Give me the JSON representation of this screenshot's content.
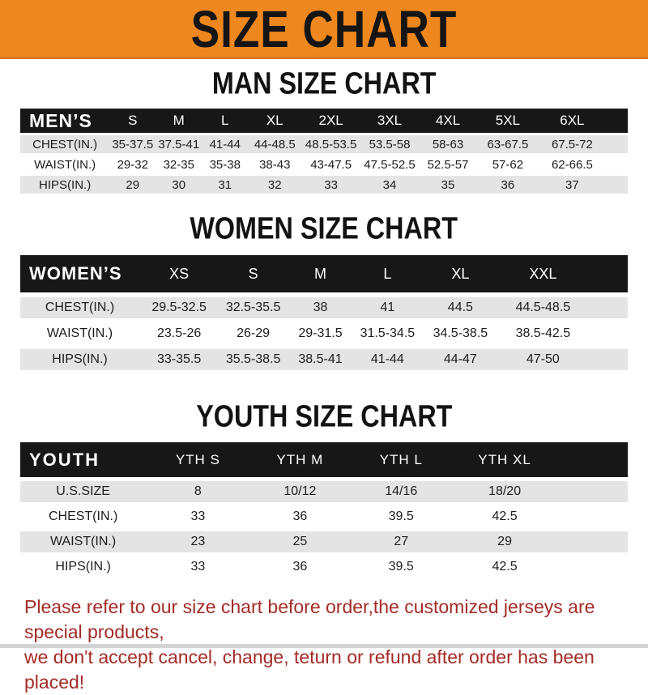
{
  "banner": {
    "title": "SIZE CHART"
  },
  "colors": {
    "banner_bg": "#EE871E",
    "banner_border": "#D9761A",
    "header_bar_bg": "#171717",
    "header_bar_text": "#FFFFFF",
    "alt_row_bg": "#E4E4E4",
    "title_text": "#131313",
    "footer_text": "#A32B26"
  },
  "chart_data": [
    {
      "type": "table",
      "title": "MAN SIZE CHART",
      "corner_label": "MEN’S",
      "columns": [
        "S",
        "M",
        "L",
        "XL",
        "2XL",
        "3XL",
        "4XL",
        "5XL",
        "6XL"
      ],
      "rows": [
        {
          "label": "CHEST(IN.)",
          "values": [
            "35-37.5",
            "37.5-41",
            "41-44",
            "44-48.5",
            "48.5-53.5",
            "53.5-58",
            "58-63",
            "63-67.5",
            "67.5-72"
          ]
        },
        {
          "label": "WAIST(IN.)",
          "values": [
            "29-32",
            "32-35",
            "35-38",
            "38-43",
            "43-47.5",
            "47.5-52.5",
            "52.5-57",
            "57-62",
            "62-66.5"
          ]
        },
        {
          "label": "HIPS(IN.)",
          "values": [
            "29",
            "30",
            "31",
            "32",
            "33",
            "34",
            "35",
            "36",
            "37"
          ]
        }
      ]
    },
    {
      "type": "table",
      "title": "WOMEN SIZE CHART",
      "corner_label": "WOMEN’S",
      "columns": [
        "XS",
        "S",
        "M",
        "L",
        "XL",
        "XXL"
      ],
      "rows": [
        {
          "label": "CHEST(IN.)",
          "values": [
            "29.5-32.5",
            "32.5-35.5",
            "38",
            "41",
            "44.5",
            "44.5-48.5"
          ]
        },
        {
          "label": "WAIST(IN.)",
          "values": [
            "23.5-26",
            "26-29",
            "29-31.5",
            "31.5-34.5",
            "34.5-38.5",
            "38.5-42.5"
          ]
        },
        {
          "label": "HIPS(IN.)",
          "values": [
            "33-35.5",
            "35.5-38.5",
            "38.5-41",
            "41-44",
            "44-47",
            "47-50"
          ]
        }
      ]
    },
    {
      "type": "table",
      "title": "YOUTH SIZE CHART",
      "corner_label": "YOUTH",
      "columns": [
        "YTH S",
        "YTH M",
        "YTH L",
        "YTH XL"
      ],
      "rows": [
        {
          "label": "U.S.SIZE",
          "values": [
            "8",
            "10/12",
            "14/16",
            "18/20"
          ]
        },
        {
          "label": "CHEST(IN.)",
          "values": [
            "33",
            "36",
            "39.5",
            "42.5"
          ]
        },
        {
          "label": "WAIST(IN.)",
          "values": [
            "23",
            "25",
            "27",
            "29"
          ]
        },
        {
          "label": "HIPS(IN.)",
          "values": [
            "33",
            "36",
            "39.5",
            "42.5"
          ]
        }
      ]
    }
  ],
  "footer": {
    "line1": "Please refer to our size chart before order,the customized jerseys are special products,",
    "line2": "we don't accept cancel, change, teturn or refund after order has been placed!"
  }
}
